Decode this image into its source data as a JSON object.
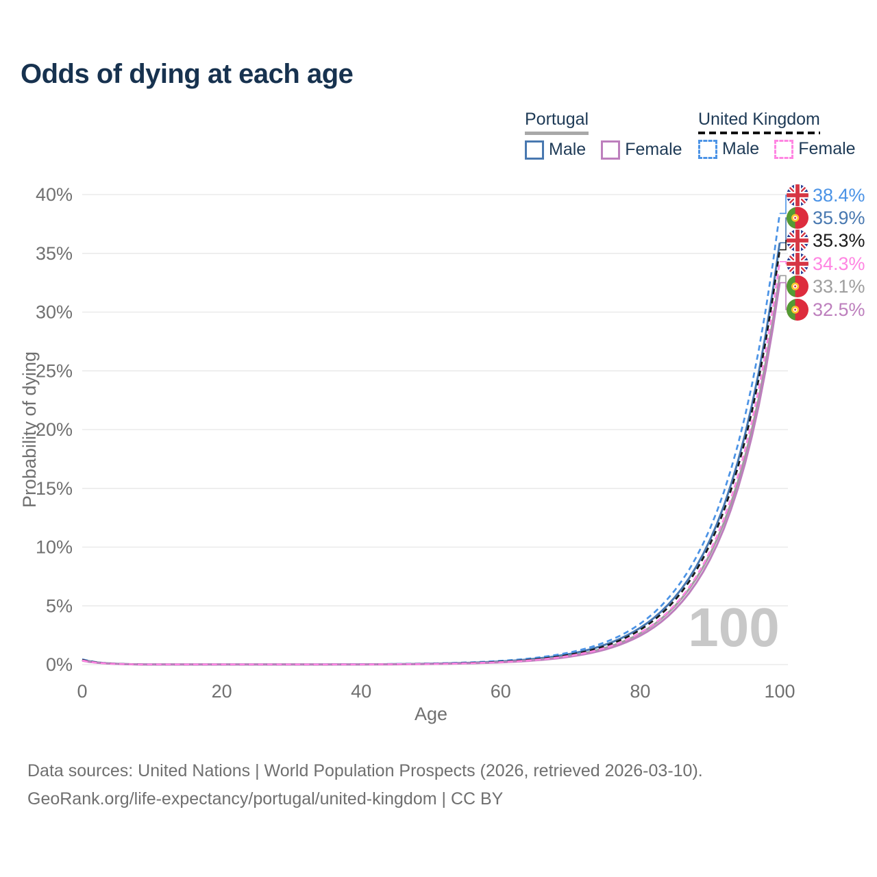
{
  "title": "Odds of dying at each age",
  "colors": {
    "title_text": "#17324f",
    "legend_text": "#1e3a56",
    "axis_text": "#707070",
    "grid_line": "#e7e7e7",
    "watermark_text": "#c8c8c8",
    "portugal_underline": "#a8a8a8",
    "uk_underline": "#111111",
    "portugal_male": "#4878b0",
    "portugal_female": "#bd7fbd",
    "portugal_all": "#9e9e9e",
    "uk_male": "#4b93e6",
    "uk_female": "#ff85e2",
    "uk_all": "#1a1a1a"
  },
  "legend": {
    "groups": [
      {
        "label": "Portugal",
        "underline_style": "solid",
        "items": [
          {
            "label": "Male",
            "series": "portugal_male",
            "line_style": "solid"
          },
          {
            "label": "Female",
            "series": "portugal_female",
            "line_style": "solid"
          }
        ]
      },
      {
        "label": "United Kingdom",
        "underline_style": "dashed",
        "items": [
          {
            "label": "Male",
            "series": "uk_male",
            "line_style": "dashed"
          },
          {
            "label": "Female",
            "series": "uk_female",
            "line_style": "dashed"
          }
        ]
      }
    ]
  },
  "chart_data": {
    "type": "line",
    "title": "Odds of dying at each age",
    "xlabel": "Age",
    "ylabel": "Probability of dying",
    "xlim": [
      0,
      100
    ],
    "ylim_pct": [
      0,
      40
    ],
    "xticks": [
      0,
      20,
      40,
      60,
      80,
      100
    ],
    "yticks_pct": [
      0,
      5,
      10,
      15,
      20,
      25,
      30,
      35,
      40
    ],
    "ytick_suffix": "%",
    "grid": true,
    "legend_position": "top-right",
    "watermark": "100",
    "ages": [
      0,
      10,
      20,
      30,
      40,
      50,
      60,
      65,
      70,
      75,
      80,
      85,
      90,
      95,
      100
    ],
    "series": [
      {
        "name": "United Kingdom — Male",
        "flag": "uk",
        "line_style": "dashed",
        "color_key": "uk_male",
        "values_pct": [
          0.45,
          0.01,
          0.01,
          0.01,
          0.03,
          0.1,
          0.32,
          0.58,
          1.05,
          1.91,
          3.48,
          6.35,
          11.57,
          21.08,
          38.4
        ],
        "end_value_pct": 38.4,
        "end_label": "38.4%"
      },
      {
        "name": "Portugal — Male",
        "flag": "pt",
        "line_style": "solid",
        "color_key": "portugal_male",
        "values_pct": [
          0.42,
          0.01,
          0.01,
          0.01,
          0.02,
          0.08,
          0.27,
          0.5,
          0.92,
          1.7,
          3.13,
          5.76,
          10.6,
          19.51,
          35.9
        ],
        "end_value_pct": 35.9,
        "end_label": "35.9%"
      },
      {
        "name": "United Kingdom — Both sexes",
        "flag": "uk",
        "line_style": "dashed",
        "color_key": "uk_all",
        "values_pct": [
          0.4,
          0.01,
          0.01,
          0.01,
          0.02,
          0.07,
          0.25,
          0.46,
          0.85,
          1.59,
          2.96,
          5.5,
          10.22,
          18.99,
          35.3
        ],
        "end_value_pct": 35.3,
        "end_label": "35.3%"
      },
      {
        "name": "United Kingdom — Female",
        "flag": "uk",
        "line_style": "dashed",
        "color_key": "uk_female",
        "values_pct": [
          0.35,
          0.01,
          0.01,
          0.01,
          0.02,
          0.06,
          0.21,
          0.4,
          0.76,
          1.43,
          2.71,
          5.1,
          9.63,
          18.18,
          34.3
        ],
        "end_value_pct": 34.3,
        "end_label": "34.3%"
      },
      {
        "name": "Portugal — Both sexes",
        "flag": "pt",
        "line_style": "solid",
        "color_key": "portugal_all",
        "values_pct": [
          0.38,
          0.01,
          0.01,
          0.01,
          0.02,
          0.06,
          0.21,
          0.4,
          0.76,
          1.42,
          2.66,
          5.0,
          9.39,
          17.63,
          33.1
        ],
        "end_value_pct": 33.1,
        "end_label": "33.1%"
      },
      {
        "name": "Portugal — Female",
        "flag": "pt",
        "line_style": "solid",
        "color_key": "portugal_female",
        "values_pct": [
          0.33,
          0.01,
          0.01,
          0.01,
          0.01,
          0.05,
          0.19,
          0.36,
          0.68,
          1.29,
          2.46,
          4.7,
          8.95,
          17.05,
          32.5
        ],
        "end_value_pct": 32.5,
        "end_label": "32.5%"
      }
    ]
  },
  "footer": {
    "line1": "Data sources: United Nations | World Population Prospects (2026, retrieved 2026-03-10).",
    "line2": "GeoRank.org/life-expectancy/portugal/united-kingdom | CC BY"
  }
}
